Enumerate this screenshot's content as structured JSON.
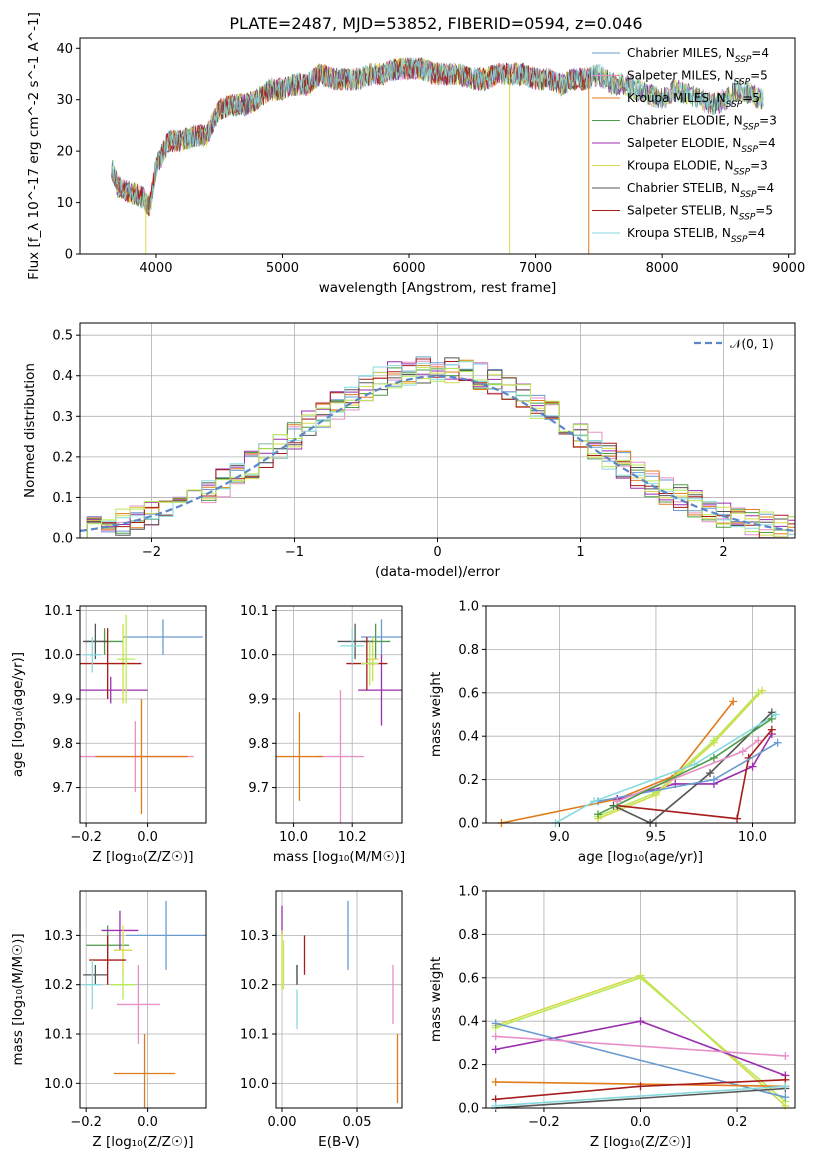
{
  "title": "PLATE=2487, MJD=53852, FIBERID=0594, z=0.046",
  "colors": [
    "#6a9cd0",
    "#e88fc7",
    "#e07b1a",
    "#4f9d4a",
    "#9b2fae",
    "#d7d94a",
    "#555555",
    "#a81c1c",
    "#86dadf",
    "#b8ea5a"
  ],
  "icons": [],
  "chart_data": [
    {
      "id": "spectrum",
      "type": "line",
      "title": "PLATE=2487, MJD=53852, FIBERID=0594, z=0.046",
      "xlabel": "wavelength [Angstrom, rest frame]",
      "ylabel": "Flux [f_λ 10^-17 erg cm^-2 s^-1 A^-1]",
      "xlim": [
        3400,
        9050
      ],
      "ylim": [
        0,
        42
      ],
      "xticks": [
        "4000",
        "5000",
        "6000",
        "7000",
        "8000",
        "9000"
      ],
      "yticks": [
        "0",
        "10",
        "20",
        "30",
        "40"
      ],
      "grid": false,
      "legend_position": "upper right",
      "series": [
        {
          "name": "Chabrier MILES, N_SSP=4",
          "color": "#6a9cd0"
        },
        {
          "name": "Salpeter MILES, N_SSP=5",
          "color": "#e88fc7"
        },
        {
          "name": "Kroupa MILES, N_SSP=5",
          "color": "#e07b1a"
        },
        {
          "name": "Chabrier ELODIE, N_SSP=3",
          "color": "#4f9d4a"
        },
        {
          "name": "Salpeter ELODIE, N_SSP=4",
          "color": "#9b2fae"
        },
        {
          "name": "Kroupa ELODIE, N_SSP=3",
          "color": "#d7d94a"
        },
        {
          "name": "Chabrier STELIB, N_SSP=4",
          "color": "#555555"
        },
        {
          "name": "Salpeter STELIB, N_SSP=5",
          "color": "#a81c1c"
        },
        {
          "name": "Kroupa STELIB, N_SSP=4",
          "color": "#86dadf"
        }
      ],
      "continuum": {
        "x": [
          3650,
          3700,
          3800,
          3900,
          3950,
          4000,
          4100,
          4200,
          4300,
          4400,
          4500,
          4600,
          4700,
          4800,
          4900,
          5000,
          5100,
          5200,
          5300,
          5400,
          5500,
          5600,
          5700,
          5800,
          5900,
          6000,
          6100,
          6200,
          6300,
          6400,
          6500,
          6600,
          6700,
          6800,
          6900,
          7000,
          7100,
          7200,
          7300,
          7400,
          7500,
          7600,
          7700,
          7800,
          7900,
          8000,
          8100,
          8200,
          8300,
          8400,
          8500,
          8600,
          8700,
          8800
        ],
        "y": [
          17,
          13,
          12,
          11,
          9,
          17,
          22,
          22,
          23,
          23,
          28,
          29,
          29,
          30,
          32,
          32,
          33,
          33,
          35,
          34,
          34,
          34,
          35,
          35,
          36,
          36,
          36,
          35,
          35,
          35,
          34,
          34,
          35,
          35,
          35,
          34,
          34,
          33,
          34,
          34,
          35,
          33,
          33,
          32,
          31,
          30,
          32,
          31,
          30,
          29,
          30,
          32,
          31,
          30
        ]
      },
      "dropouts": [
        {
          "series": "Kroupa ELODIE, N_SSP=3",
          "x": 3920,
          "y_end": 0
        },
        {
          "series": "Kroupa ELODIE, N_SSP=3",
          "x": 6795,
          "y_end": 0
        },
        {
          "series": "Kroupa MILES, N_SSP=5",
          "x": 7420,
          "y_end": 0
        }
      ]
    },
    {
      "id": "residuals",
      "type": "line",
      "xlabel": "(data-model)/error",
      "ylabel": "Normed distribution",
      "xlim": [
        -2.5,
        2.5
      ],
      "ylim": [
        0,
        0.53
      ],
      "xticks": [
        "−2",
        "−1",
        "0",
        "1",
        "2"
      ],
      "yticks": [
        "0.0",
        "0.1",
        "0.2",
        "0.3",
        "0.4",
        "0.5"
      ],
      "grid": true,
      "legend_position": "upper right",
      "legend": "N(0,1)",
      "reference_curve": {
        "name": "N(0,1)",
        "mu": 0,
        "sigma": 1,
        "style": "dashed",
        "color": "#5b86c9"
      },
      "histogram_bin_width": 0.1,
      "histogram_colors": [
        "#6a9cd0",
        "#e88fc7",
        "#e07b1a",
        "#4f9d4a",
        "#9b2fae",
        "#d7d94a",
        "#555555",
        "#a81c1c",
        "#86dadf",
        "#b8ea5a"
      ]
    },
    {
      "id": "age_vs_Z",
      "type": "scatter",
      "xlabel": "Z [log10(Z/Z_sun)]",
      "ylabel": "age [log10(age/yr)]",
      "xlim": [
        -0.22,
        0.19
      ],
      "ylim": [
        9.62,
        10.11
      ],
      "xticks": [
        "−0.2",
        "0.0"
      ],
      "yticks": [
        "9.7",
        "9.8",
        "9.9",
        "10.0",
        "10.1"
      ],
      "grid": true,
      "points": [
        {
          "x": 0.05,
          "y": 10.04,
          "xerr": 0.13,
          "yerr": 0.04,
          "color": "#6a9cd0"
        },
        {
          "x": -0.04,
          "y": 9.77,
          "xerr": 0.19,
          "yerr": 0.08,
          "color": "#e88fc7"
        },
        {
          "x": -0.02,
          "y": 9.77,
          "xerr": 0.15,
          "yerr": 0.13,
          "color": "#e07b1a"
        },
        {
          "x": -0.14,
          "y": 10.03,
          "xerr": 0.06,
          "yerr": 0.03,
          "color": "#4f9d4a"
        },
        {
          "x": -0.12,
          "y": 9.92,
          "xerr": 0.12,
          "yerr": 0.03,
          "color": "#9b2fae"
        },
        {
          "x": -0.08,
          "y": 9.98,
          "xerr": 0.04,
          "yerr": 0.09,
          "color": "#d7d94a"
        },
        {
          "x": -0.17,
          "y": 10.03,
          "xerr": 0.04,
          "yerr": 0.04,
          "color": "#555555"
        },
        {
          "x": -0.13,
          "y": 9.98,
          "xerr": 0.11,
          "yerr": 0.08,
          "color": "#a81c1c"
        },
        {
          "x": -0.18,
          "y": 10.0,
          "xerr": 0.03,
          "yerr": 0.04,
          "color": "#86dadf"
        },
        {
          "x": -0.07,
          "y": 9.99,
          "xerr": 0.03,
          "yerr": 0.1,
          "color": "#b8ea5a"
        }
      ]
    },
    {
      "id": "age_vs_mass",
      "type": "scatter",
      "xlabel": "mass [log10(M/M_sun)]",
      "ylabel": "",
      "xlim": [
        9.94,
        10.37
      ],
      "ylim": [
        9.62,
        10.11
      ],
      "xticks": [
        "10.0",
        "10.2"
      ],
      "yticks": [
        "9.7",
        "9.8",
        "9.9",
        "10.0",
        "10.1"
      ],
      "grid": true,
      "points": [
        {
          "x": 10.3,
          "y": 10.04,
          "xerr": 0.07,
          "yerr": 0.04,
          "color": "#6a9cd0"
        },
        {
          "x": 10.16,
          "y": 9.77,
          "xerr": 0.08,
          "yerr": 0.15,
          "color": "#e88fc7"
        },
        {
          "x": 10.02,
          "y": 9.77,
          "xerr": 0.08,
          "yerr": 0.1,
          "color": "#e07b1a"
        },
        {
          "x": 10.28,
          "y": 10.03,
          "xerr": 0.05,
          "yerr": 0.04,
          "color": "#4f9d4a"
        },
        {
          "x": 10.3,
          "y": 9.92,
          "xerr": 0.08,
          "yerr": 0.08,
          "color": "#9b2fae"
        },
        {
          "x": 10.27,
          "y": 9.99,
          "xerr": 0.02,
          "yerr": 0.05,
          "color": "#d7d94a"
        },
        {
          "x": 10.21,
          "y": 10.03,
          "xerr": 0.06,
          "yerr": 0.04,
          "color": "#555555"
        },
        {
          "x": 10.25,
          "y": 9.98,
          "xerr": 0.07,
          "yerr": 0.06,
          "color": "#a81c1c"
        },
        {
          "x": 10.2,
          "y": 10.02,
          "xerr": 0.04,
          "yerr": 0.04,
          "color": "#86dadf"
        },
        {
          "x": 10.26,
          "y": 9.98,
          "xerr": 0.03,
          "yerr": 0.05,
          "color": "#b8ea5a"
        }
      ]
    },
    {
      "id": "massweight_vs_age",
      "type": "line",
      "xlabel": "age [log10(age/yr)]",
      "ylabel": "mass weight",
      "xlim": [
        8.62,
        10.22
      ],
      "ylim": [
        0,
        1.0
      ],
      "xticks": [
        "9.0",
        "9.5",
        "10.0"
      ],
      "yticks": [
        "0.0",
        "0.2",
        "0.4",
        "0.6",
        "0.8",
        "1.0"
      ],
      "grid": true,
      "series": [
        {
          "color": "#e07b1a",
          "x": [
            8.7,
            9.3,
            9.6,
            9.9
          ],
          "y": [
            0.0,
            0.11,
            0.22,
            0.56
          ]
        },
        {
          "color": "#9b2fae",
          "x": [
            9.3,
            9.6,
            9.8,
            10.0,
            10.1
          ],
          "y": [
            0.11,
            0.18,
            0.18,
            0.26,
            0.41
          ]
        },
        {
          "color": "#d7d94a",
          "x": [
            9.2,
            9.5,
            9.8,
            10.05
          ],
          "y": [
            0.02,
            0.13,
            0.37,
            0.61
          ]
        },
        {
          "color": "#b8ea5a",
          "x": [
            9.2,
            9.5,
            9.8,
            10.03
          ],
          "y": [
            0.03,
            0.14,
            0.38,
            0.6
          ]
        },
        {
          "color": "#a81c1c",
          "x": [
            9.3,
            9.92,
            9.98,
            10.1
          ],
          "y": [
            0.08,
            0.02,
            0.3,
            0.43
          ]
        },
        {
          "color": "#555555",
          "x": [
            9.28,
            9.47,
            9.78,
            10.1
          ],
          "y": [
            0.08,
            0.0,
            0.23,
            0.51
          ]
        },
        {
          "color": "#6a9cd0",
          "x": [
            9.2,
            9.8,
            10.13
          ],
          "y": [
            0.1,
            0.2,
            0.37
          ]
        },
        {
          "color": "#e88fc7",
          "x": [
            9.3,
            9.95,
            10.03
          ],
          "y": [
            0.1,
            0.33,
            0.38
          ]
        },
        {
          "color": "#86dadf",
          "x": [
            8.98,
            9.18,
            9.7,
            10.12
          ],
          "y": [
            0.0,
            0.1,
            0.27,
            0.5
          ]
        },
        {
          "color": "#4f9d4a",
          "x": [
            9.2,
            9.8,
            10.1
          ],
          "y": [
            0.04,
            0.3,
            0.48
          ]
        }
      ]
    },
    {
      "id": "mass_vs_Z",
      "type": "scatter",
      "xlabel": "Z [log10(Z/Z_sun)]",
      "ylabel": "mass [log10(M/M_sun)]",
      "xlim": [
        -0.22,
        0.19
      ],
      "ylim": [
        9.95,
        10.39
      ],
      "xticks": [
        "−0.2",
        "0.0"
      ],
      "yticks": [
        "10.0",
        "10.1",
        "10.2",
        "10.3"
      ],
      "grid": true,
      "points": [
        {
          "x": 0.06,
          "y": 10.3,
          "xerr": 0.13,
          "yerr": 0.07,
          "color": "#6a9cd0"
        },
        {
          "x": -0.03,
          "y": 10.16,
          "xerr": 0.07,
          "yerr": 0.08,
          "color": "#e88fc7"
        },
        {
          "x": -0.01,
          "y": 10.02,
          "xerr": 0.1,
          "yerr": 0.08,
          "color": "#e07b1a"
        },
        {
          "x": -0.13,
          "y": 10.28,
          "xerr": 0.07,
          "yerr": 0.04,
          "color": "#4f9d4a"
        },
        {
          "x": -0.09,
          "y": 10.31,
          "xerr": 0.06,
          "yerr": 0.04,
          "color": "#9b2fae"
        },
        {
          "x": -0.08,
          "y": 10.27,
          "xerr": 0.03,
          "yerr": 0.05,
          "color": "#d7d94a"
        },
        {
          "x": -0.17,
          "y": 10.22,
          "xerr": 0.04,
          "yerr": 0.02,
          "color": "#555555"
        },
        {
          "x": -0.13,
          "y": 10.25,
          "xerr": 0.06,
          "yerr": 0.05,
          "color": "#a81c1c"
        },
        {
          "x": -0.18,
          "y": 10.2,
          "xerr": 0.03,
          "yerr": 0.05,
          "color": "#86dadf"
        },
        {
          "x": -0.08,
          "y": 10.2,
          "xerr": 0.04,
          "yerr": 0.03,
          "color": "#b8ea5a"
        }
      ]
    },
    {
      "id": "mass_vs_EBV",
      "type": "scatter",
      "xlabel": "E(B-V)",
      "ylabel": "",
      "xlim": [
        -0.004,
        0.08
      ],
      "ylim": [
        9.95,
        10.39
      ],
      "xticks": [
        "0.00",
        "0.05"
      ],
      "yticks": [
        "10.0",
        "10.1",
        "10.2",
        "10.3"
      ],
      "grid": true,
      "points": [
        {
          "x": 0.044,
          "y": 10.3,
          "xerr": 0,
          "yerr": 0.07,
          "color": "#6a9cd0"
        },
        {
          "x": 0.074,
          "y": 10.18,
          "xerr": 0,
          "yerr": 0.06,
          "color": "#e88fc7"
        },
        {
          "x": 0.077,
          "y": 10.03,
          "xerr": 0,
          "yerr": 0.07,
          "color": "#e07b1a"
        },
        {
          "x": 0.01,
          "y": 10.22,
          "xerr": 0,
          "yerr": 0.02,
          "color": "#4f9d4a"
        },
        {
          "x": 0.0,
          "y": 10.33,
          "xerr": 0,
          "yerr": 0.03,
          "color": "#9b2fae"
        },
        {
          "x": 0.0,
          "y": 10.25,
          "xerr": 0,
          "yerr": 0.06,
          "color": "#d7d94a"
        },
        {
          "x": 0.01,
          "y": 10.22,
          "xerr": 0,
          "yerr": 0.02,
          "color": "#555555"
        },
        {
          "x": 0.015,
          "y": 10.26,
          "xerr": 0,
          "yerr": 0.04,
          "color": "#a81c1c"
        },
        {
          "x": 0.01,
          "y": 10.15,
          "xerr": 0,
          "yerr": 0.04,
          "color": "#86dadf"
        },
        {
          "x": 0.001,
          "y": 10.24,
          "xerr": 0,
          "yerr": 0.05,
          "color": "#b8ea5a"
        }
      ]
    },
    {
      "id": "massweight_vs_Z",
      "type": "line",
      "xlabel": "Z [log10(Z/Z_sun)]",
      "ylabel": "mass weight",
      "xlim": [
        -0.32,
        0.32
      ],
      "ylim": [
        0,
        1.0
      ],
      "xticks": [
        "−0.2",
        "0.0",
        "0.2"
      ],
      "yticks": [
        "0.0",
        "0.2",
        "0.4",
        "0.6",
        "0.8",
        "1.0"
      ],
      "grid": true,
      "series": [
        {
          "color": "#d7d94a",
          "x": [
            -0.3,
            0.0,
            0.3
          ],
          "y": [
            0.38,
            0.61,
            0.01
          ]
        },
        {
          "color": "#b8ea5a",
          "x": [
            -0.3,
            0.0,
            0.3
          ],
          "y": [
            0.37,
            0.6,
            0.03
          ]
        },
        {
          "color": "#9b2fae",
          "x": [
            -0.3,
            0.0,
            0.3
          ],
          "y": [
            0.27,
            0.4,
            0.15
          ]
        },
        {
          "color": "#6a9cd0",
          "x": [
            -0.3,
            0.3
          ],
          "y": [
            0.39,
            0.05
          ]
        },
        {
          "color": "#e88fc7",
          "x": [
            -0.3,
            0.3
          ],
          "y": [
            0.33,
            0.24
          ]
        },
        {
          "color": "#e07b1a",
          "x": [
            -0.3,
            0.3
          ],
          "y": [
            0.12,
            0.1
          ]
        },
        {
          "color": "#a81c1c",
          "x": [
            -0.3,
            0.0,
            0.3
          ],
          "y": [
            0.04,
            0.1,
            0.13
          ]
        },
        {
          "color": "#555555",
          "x": [
            -0.3,
            0.3
          ],
          "y": [
            0.0,
            0.09
          ]
        },
        {
          "color": "#86dadf",
          "x": [
            -0.3,
            0.3
          ],
          "y": [
            0.01,
            0.1
          ]
        }
      ]
    }
  ]
}
